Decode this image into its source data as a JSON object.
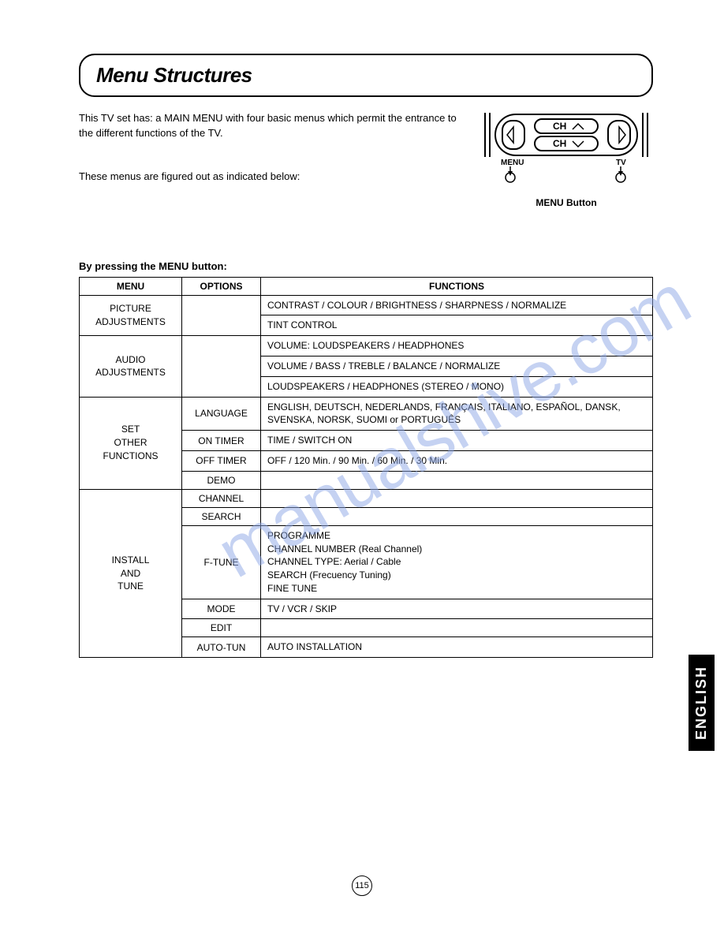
{
  "page": {
    "title": "Menu Structures",
    "intro1": "This TV set has: a MAIN MENU with four basic menus which permit the entrance to the different functions of the TV.",
    "intro2": "These menus are figured out as indicated below:",
    "remote": {
      "ch_up": "CH",
      "ch_down": "CH",
      "menu_label": "MENU",
      "tv_label": "TV",
      "button_label": "MENU Button"
    },
    "section_label": "By pressing the MENU button:",
    "table": {
      "headers": {
        "menu": "MENU",
        "options": "OPTIONS",
        "functions": "FUNCTIONS"
      },
      "groups": [
        {
          "menu": "PICTURE\nADJUSTMENTS",
          "rows": [
            {
              "option": "",
              "function": "CONTRAST / COLOUR / BRIGHTNESS / SHARPNESS / NORMALIZE"
            },
            {
              "option": "",
              "function": "TINT CONTROL"
            }
          ]
        },
        {
          "menu": "AUDIO\nADJUSTMENTS",
          "rows": [
            {
              "option": "",
              "function": "VOLUME: LOUDSPEAKERS / HEADPHONES"
            },
            {
              "option": "",
              "function": "VOLUME / BASS / TREBLE / BALANCE / NORMALIZE"
            },
            {
              "option": "",
              "function": "LOUDSPEAKERS / HEADPHONES (STEREO / MONO)"
            }
          ]
        },
        {
          "menu": "SET\nOTHER\nFUNCTIONS",
          "rows": [
            {
              "option": "LANGUAGE",
              "function": "ENGLISH, DEUTSCH, NEDERLANDS, FRANÇAIS, ITALIANO, ESPAÑOL, DANSK, SVENSKA, NORSK, SUOMI or PORTUGUÊS"
            },
            {
              "option": "ON TIMER",
              "function": "TIME / SWITCH ON"
            },
            {
              "option": "OFF TIMER",
              "function": "OFF / 120 Min. / 90 Min. / 60 Min. / 30 Min."
            },
            {
              "option": "DEMO",
              "function": ""
            }
          ]
        },
        {
          "menu": "INSTALL\nAND\nTUNE",
          "rows": [
            {
              "option": "CHANNEL",
              "function": ""
            },
            {
              "option": "SEARCH",
              "function": ""
            },
            {
              "option": "F-TUNE",
              "function": "PROGRAMME\nCHANNEL NUMBER (Real Channel)\nCHANNEL TYPE: Aerial / Cable\nSEARCH (Frecuency Tuning)\nFINE TUNE"
            },
            {
              "option": "MODE",
              "function": "TV / VCR / SKIP"
            },
            {
              "option": "EDIT",
              "function": ""
            },
            {
              "option": "AUTO-TUN",
              "function": "AUTO INSTALLATION"
            }
          ]
        }
      ]
    },
    "watermark": "manualshive.com",
    "language_tab": "ENGLISH",
    "page_number": "115"
  }
}
